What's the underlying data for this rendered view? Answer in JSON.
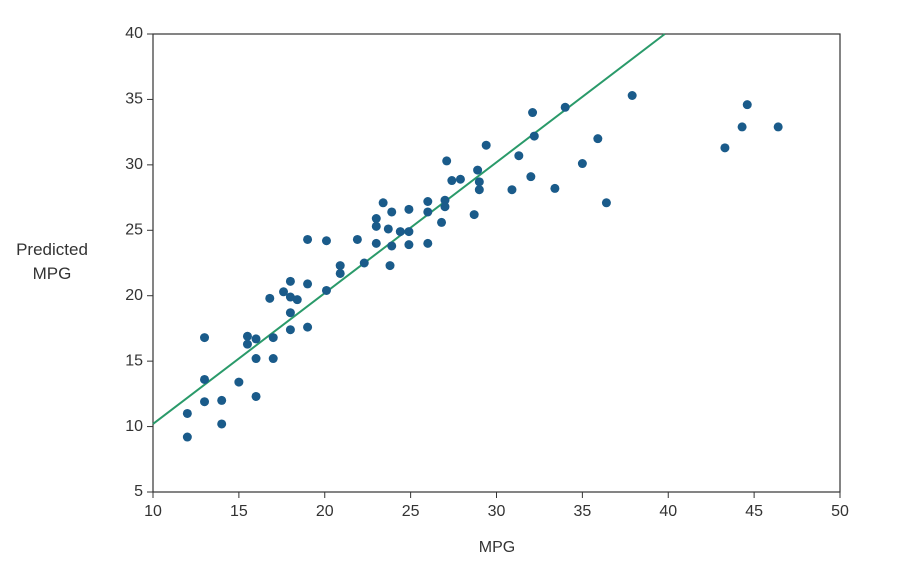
{
  "chart_data": {
    "type": "scatter",
    "x_label": "MPG",
    "y_label": "Predicted MPG",
    "xlim": [
      10,
      50
    ],
    "xticks": [
      10,
      15,
      20,
      25,
      30,
      35,
      40,
      45,
      50
    ],
    "ylim": [
      5,
      40
    ],
    "yticks": [
      5,
      10,
      15,
      20,
      25,
      30,
      35,
      40
    ],
    "series": [
      {
        "color": "#1a5b8a",
        "x": [
          12,
          12,
          13,
          13,
          13,
          14,
          14,
          15,
          15.5,
          15.5,
          16,
          16,
          16,
          16.8,
          17,
          17,
          17.6,
          18,
          18,
          18,
          18,
          18.4,
          19,
          19,
          19,
          20.1,
          20.1,
          20.9,
          20.9,
          21.9,
          22.3,
          23,
          23,
          23,
          23.4,
          23.7,
          23.8,
          23.9,
          23.9,
          24.4,
          24.9,
          24.9,
          24.9,
          26,
          26,
          26,
          26.8,
          27,
          27,
          27.1,
          27.4,
          27.9,
          28.7,
          28.9,
          29,
          29,
          29.4,
          30.9,
          31.3,
          32,
          32.1,
          32.2,
          33.4,
          34,
          35,
          35.9,
          36.4,
          37.9,
          43.3,
          44.3,
          44.6,
          46.4
        ],
        "values": [
          11,
          9.2,
          16.8,
          13.6,
          11.9,
          12,
          10.2,
          13.4,
          16.9,
          16.3,
          16.7,
          15.2,
          12.3,
          19.8,
          16.8,
          15.2,
          20.3,
          21.1,
          19.9,
          18.7,
          17.4,
          19.7,
          24.3,
          20.9,
          17.6,
          24.2,
          20.4,
          22.3,
          21.7,
          24.3,
          22.5,
          25.9,
          25.3,
          24,
          27.1,
          25.1,
          22.3,
          26.4,
          23.8,
          24.9,
          26.6,
          24.9,
          23.9,
          27.2,
          26.4,
          24,
          25.6,
          27.3,
          26.8,
          30.3,
          28.8,
          28.9,
          26.2,
          29.6,
          28.7,
          28.1,
          31.5,
          28.1,
          30.7,
          29.1,
          34,
          32.2,
          28.2,
          34.4,
          30.1,
          32,
          27.1,
          35.3,
          31.3,
          32.9,
          34.6,
          32.9
        ]
      }
    ],
    "fit_line": {
      "color": "#2a9a6a",
      "x": [
        10,
        39.8
      ],
      "values": [
        10.2,
        40
      ]
    }
  }
}
